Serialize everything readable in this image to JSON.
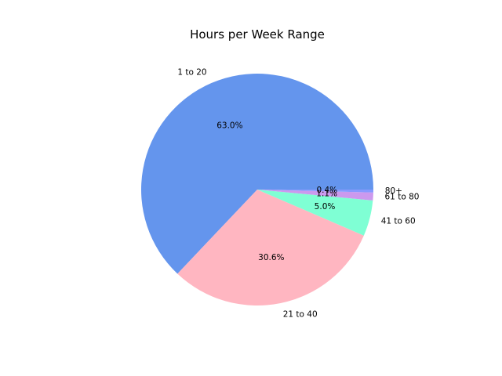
{
  "chart_data": {
    "type": "pie",
    "title": "Hours per Week Range",
    "legend": "none",
    "slices": [
      {
        "label": "1 to 20",
        "pct_label": "63.0%",
        "value": 63.0,
        "color": "#6495ED"
      },
      {
        "label": "21 to 40",
        "pct_label": "30.6%",
        "value": 30.6,
        "color": "#FFB6C1"
      },
      {
        "label": "41 to 60",
        "pct_label": "5.0%",
        "value": 5.0,
        "color": "#7FFFD4"
      },
      {
        "label": "61 to 80",
        "pct_label": "1.1%",
        "value": 1.1,
        "color": "#CC99EE"
      },
      {
        "label": "80+",
        "pct_label": "0.4%",
        "value": 0.4,
        "color": "#8899FF"
      }
    ]
  }
}
